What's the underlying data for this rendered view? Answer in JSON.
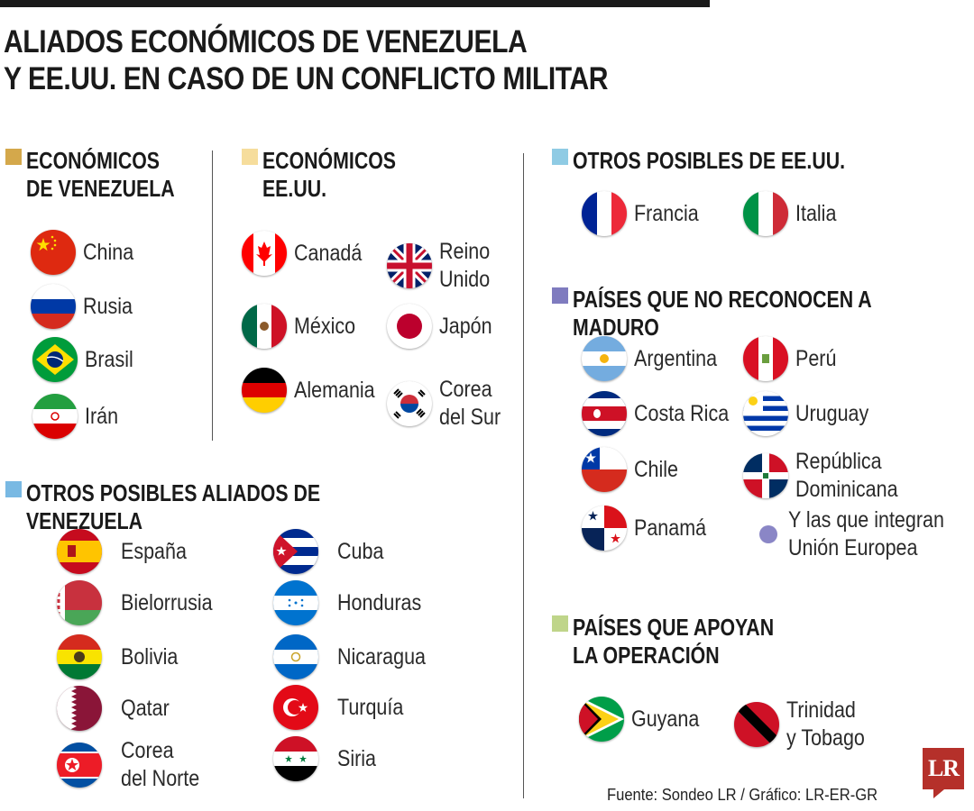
{
  "title": "ALIADOS ECONÓMICOS DE VENEZUELA\nY EE.UU. EN CASO DE UN CONFLICTO MILITAR",
  "colors": {
    "economicos_venezuela": "#d4a84b",
    "economicos_eeuu": "#f6dd9c",
    "otros_eeuu": "#8fcbe4",
    "no_reconocen": "#7f7bbf",
    "otros_venezuela": "#79b9e3",
    "apoyan": "#bfd58a",
    "logo": "#b5302a"
  },
  "sections": {
    "economicos_venezuela": {
      "title": "ECONÓMICOS\nDE VENEZUELA",
      "countries": [
        "China",
        "Rusia",
        "Brasil",
        "Irán"
      ]
    },
    "economicos_eeuu": {
      "title": "ECONÓMICOS\nEE.UU.",
      "countries": [
        "Canadá",
        "México",
        "Alemania",
        "Reino\nUnido",
        "Japón",
        "Corea\ndel Sur"
      ]
    },
    "otros_eeuu": {
      "title": "OTROS POSIBLES DE EE.UU.",
      "countries": [
        "Francia",
        "Italia"
      ]
    },
    "no_reconocen": {
      "title": "PAÍSES QUE NO RECONOCEN A MADURO",
      "countries": [
        "Argentina",
        "Costa Rica",
        "Chile",
        "Panamá",
        "Perú",
        "Uruguay",
        "República\nDominicana"
      ],
      "extra": "Y las que integran\nUnión Europea"
    },
    "otros_venezuela": {
      "title": "OTROS POSIBLES ALIADOS DE VENEZUELA",
      "countries": [
        "España",
        "Bielorrusia",
        "Bolivia",
        "Qatar",
        "Corea\ndel Norte",
        "Cuba",
        "Honduras",
        "Nicaragua",
        "Turquía",
        "Siria"
      ]
    },
    "apoyan": {
      "title": "PAÍSES QUE APOYAN\nLA OPERACIÓN",
      "countries": [
        "Guyana",
        "Trinidad\ny Tobago"
      ]
    }
  },
  "source": "Fuente: Sondeo LR / Gráfico: LR-ER-GR",
  "logo": "LR"
}
